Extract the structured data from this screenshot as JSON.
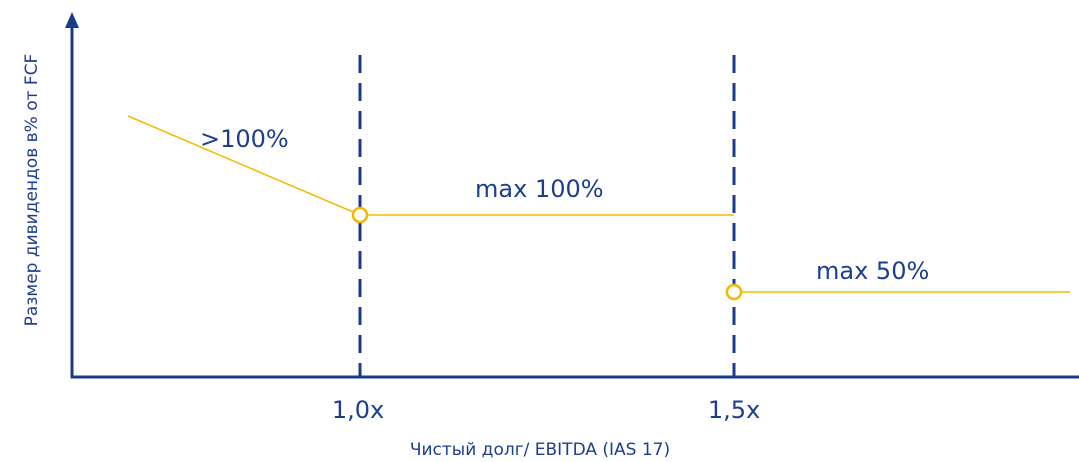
{
  "y_axis_label": "Размер дивидендов в% от FCF",
  "x_axis_label": "Чистый долг/ EBITDA (IAS 17)",
  "x_ticks": [
    "1,0x",
    "1,5x"
  ],
  "annotations": [
    ">100%",
    "max 100%",
    "max 50%"
  ]
}
